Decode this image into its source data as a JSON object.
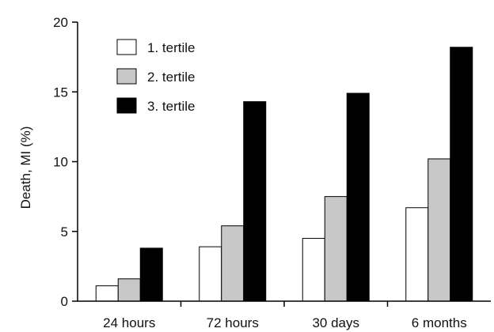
{
  "chart_data": {
    "type": "bar",
    "title": "",
    "xlabel": "",
    "ylabel": "Death, MI (%)",
    "ylim": [
      0,
      20
    ],
    "yticks": [
      0,
      5,
      10,
      15,
      20
    ],
    "grid": false,
    "legend_position": "top-left",
    "categories": [
      "24 hours",
      "72 hours",
      "30 days",
      "6 months"
    ],
    "series": [
      {
        "name": "1. tertile",
        "color": "#ffffff",
        "values": [
          1.1,
          3.9,
          4.5,
          6.7
        ]
      },
      {
        "name": "2. tertile",
        "color": "#c8c8c8",
        "values": [
          1.6,
          5.4,
          7.5,
          10.2
        ]
      },
      {
        "name": "3. tertile",
        "color": "#000000",
        "values": [
          3.8,
          14.3,
          14.9,
          18.2
        ]
      }
    ]
  }
}
